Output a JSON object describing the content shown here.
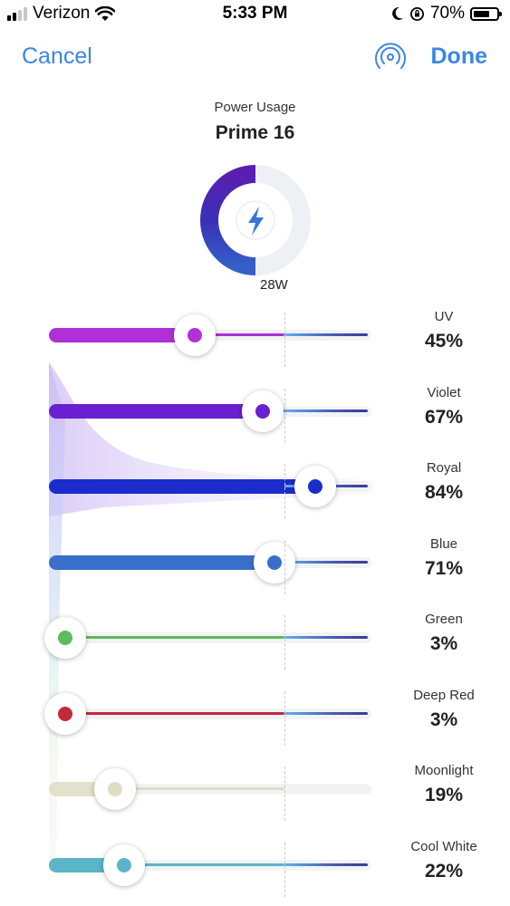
{
  "status_bar": {
    "carrier": "Verizon",
    "time": "5:33 PM",
    "battery": "70%",
    "battery_level": 0.7
  },
  "nav": {
    "cancel_label": "Cancel",
    "done_label": "Done",
    "signal_icon": "broadcast-icon"
  },
  "header": {
    "subtitle": "Power Usage",
    "device": "Prime 16"
  },
  "gauge": {
    "label": "28W",
    "fraction": 0.5,
    "icon": "lightning-bolt-icon"
  },
  "channels": [
    {
      "name": "UV",
      "percent": "45%",
      "value": 45,
      "color": "#b02fd6",
      "fill": true
    },
    {
      "name": "Violet",
      "percent": "67%",
      "value": 67,
      "color": "#6a1fd0",
      "fill": true
    },
    {
      "name": "Royal",
      "percent": "84%",
      "value": 84,
      "color": "#1a2ccb",
      "fill": true
    },
    {
      "name": "Blue",
      "percent": "71%",
      "value": 71,
      "color": "#3a6fc9",
      "fill": true
    },
    {
      "name": "Green",
      "percent": "3%",
      "value": 3,
      "color": "#5cbb5b",
      "fill": true
    },
    {
      "name": "Deep Red",
      "percent": "3%",
      "value": 3,
      "color": "#c4283c",
      "fill": true
    },
    {
      "name": "Moonlight",
      "percent": "19%",
      "value": 19,
      "color": "#e0dcc4",
      "fill": false
    },
    {
      "name": "Cool White",
      "percent": "22%",
      "value": 22,
      "color": "#5ab5c8",
      "fill": true
    }
  ]
}
